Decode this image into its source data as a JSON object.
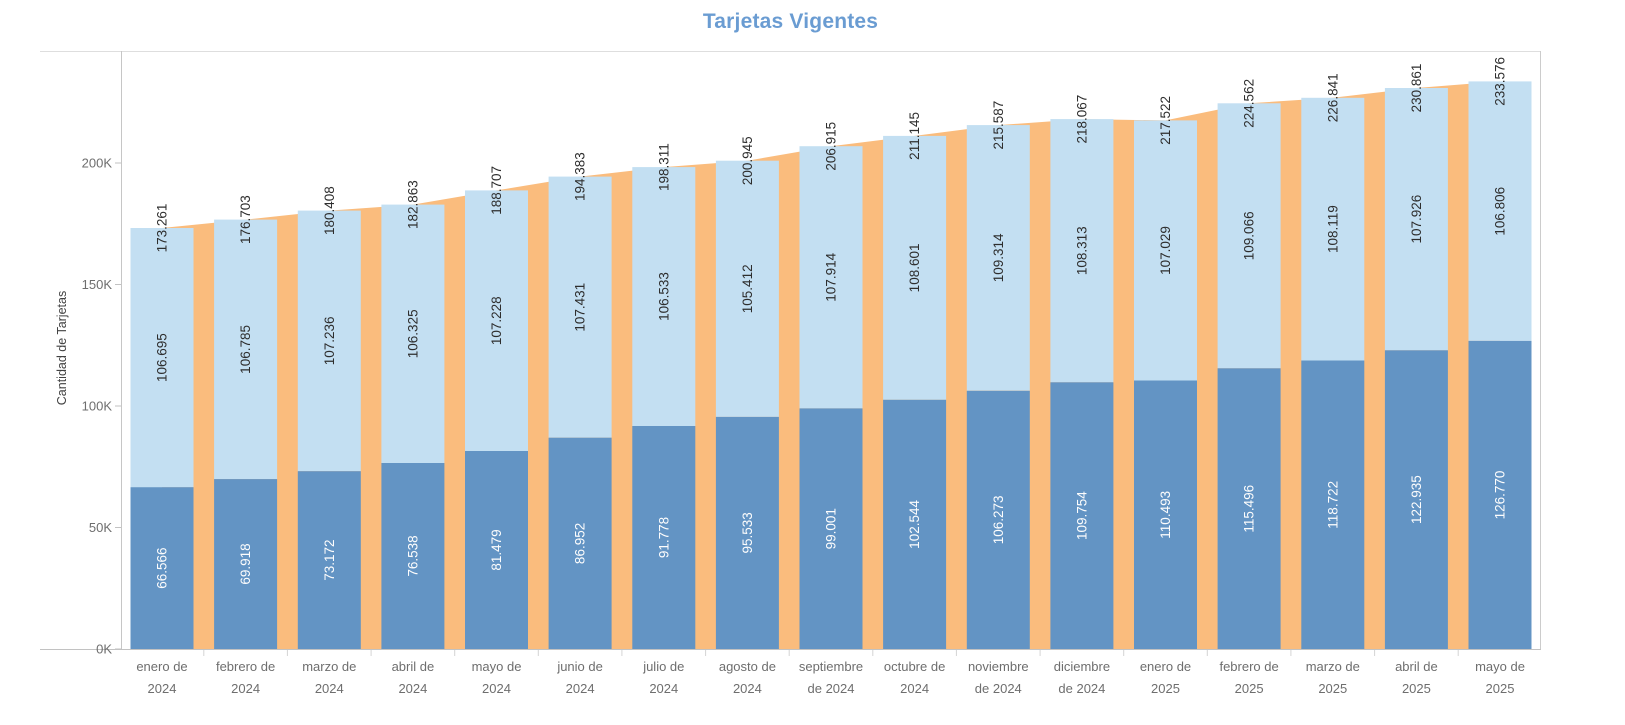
{
  "title": "Tarjetas Vigentes",
  "chart_data": {
    "type": "bar",
    "subtype": "stacked-bars-with-total-area-overlay",
    "title": "Tarjetas Vigentes",
    "xlabel": "",
    "ylabel": "Cantidad de Tarjetas",
    "ylim": [
      0,
      246000
    ],
    "grid": false,
    "legend": "none",
    "colors": {
      "bar_bottom": "#6394c4",
      "bar_top": "#c3dff2",
      "area_total": "#fabc7d",
      "title_text": "#6a9cd2",
      "label_dark_text": "#2e2e2e",
      "label_white_text": "#fdfdfd",
      "axis_text": "#6e6e6e",
      "axis_title_text": "#424242"
    },
    "yticks": [
      {
        "value": 0,
        "label": "0K"
      },
      {
        "value": 50000,
        "label": "50K"
      },
      {
        "value": 100000,
        "label": "100K"
      },
      {
        "value": 150000,
        "label": "150K"
      },
      {
        "value": 200000,
        "label": "200K"
      }
    ],
    "categories": [
      [
        "enero de",
        "2024"
      ],
      [
        "febrero de",
        "2024"
      ],
      [
        "marzo de",
        "2024"
      ],
      [
        "abril de",
        "2024"
      ],
      [
        "mayo de",
        "2024"
      ],
      [
        "junio de",
        "2024"
      ],
      [
        "julio de",
        "2024"
      ],
      [
        "agosto de",
        "2024"
      ],
      [
        "septiembre",
        "de 2024"
      ],
      [
        "octubre de",
        "2024"
      ],
      [
        "noviembre",
        "de 2024"
      ],
      [
        "diciembre",
        "de 2024"
      ],
      [
        "enero de",
        "2025"
      ],
      [
        "febrero de",
        "2025"
      ],
      [
        "marzo de",
        "2025"
      ],
      [
        "abril de",
        "2025"
      ],
      [
        "mayo de",
        "2025"
      ]
    ],
    "series": [
      {
        "name": "bottom_segment",
        "color": "#6394c4",
        "values": [
          66566,
          69918,
          73172,
          76538,
          81479,
          86952,
          91778,
          95533,
          99001,
          102544,
          106273,
          109754,
          110493,
          115496,
          118722,
          122935,
          126770
        ],
        "labels": [
          "66.566",
          "69.918",
          "73.172",
          "76.538",
          "81.479",
          "86.952",
          "91.778",
          "95.533",
          "99.001",
          "102.544",
          "106.273",
          "109.754",
          "110.493",
          "115.496",
          "118.722",
          "122.935",
          "126.770"
        ]
      },
      {
        "name": "top_segment",
        "color": "#c3dff2",
        "values": [
          106695,
          106785,
          107236,
          106325,
          107228,
          107431,
          106533,
          105412,
          107914,
          108601,
          109314,
          108313,
          107029,
          109066,
          108119,
          107926,
          106806
        ],
        "labels": [
          "106.695",
          "106.785",
          "107.236",
          "106.325",
          "107.228",
          "107.431",
          "106.533",
          "105.412",
          "107.914",
          "108.601",
          "109.314",
          "108.313",
          "107.029",
          "109.066",
          "108.119",
          "107.926",
          "106.806"
        ]
      },
      {
        "name": "total_area",
        "color": "#fabc7d",
        "values": [
          173261,
          176703,
          180408,
          182863,
          188707,
          194383,
          198311,
          200945,
          206915,
          211145,
          215587,
          218067,
          217522,
          224562,
          226841,
          230861,
          233576
        ],
        "labels": [
          "173.261",
          "176.703",
          "180.408",
          "182.863",
          "188.707",
          "194.383",
          "198.311",
          "200.945",
          "206.915",
          "211.145",
          "215.587",
          "218.067",
          "217.522",
          "224.562",
          "226.841",
          "230.861",
          "233.576"
        ]
      }
    ]
  }
}
